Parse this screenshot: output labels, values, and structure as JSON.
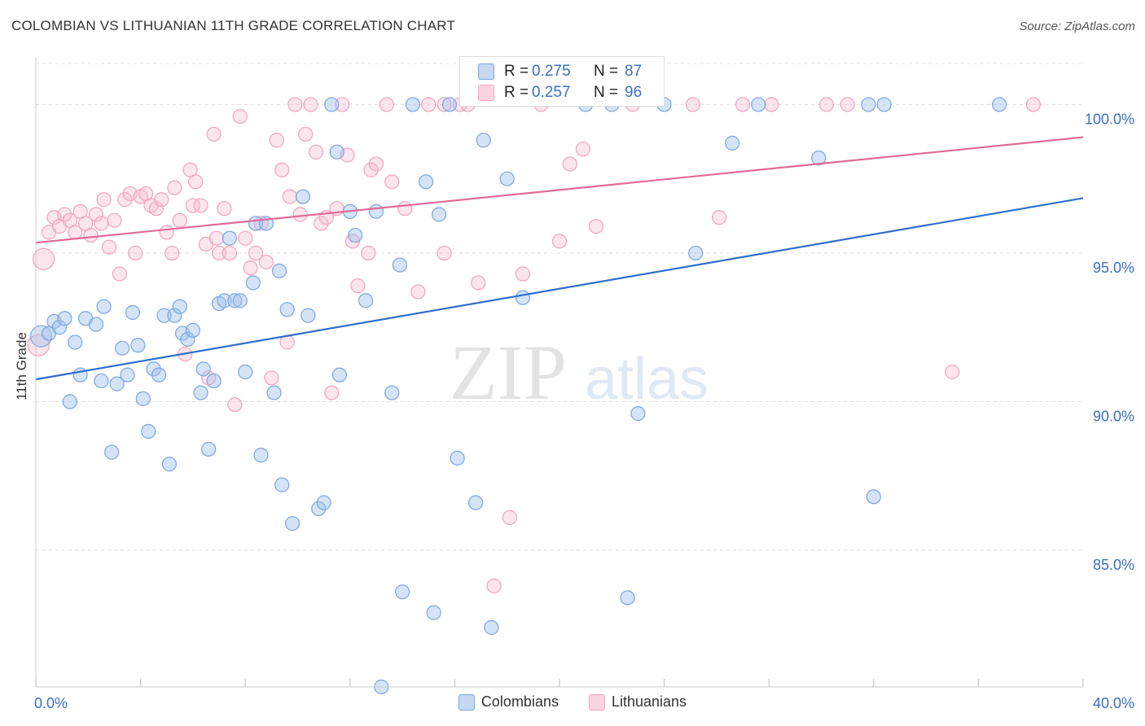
{
  "title": "COLOMBIAN VS LITHUANIAN 11TH GRADE CORRELATION CHART",
  "source": "Source: ZipAtlas.com",
  "watermark": {
    "zip": "ZIP",
    "atlas": "atlas"
  },
  "legend_top": {
    "rows": [
      {
        "r_label": "R = ",
        "r_value": "0.275",
        "n_label": "N = ",
        "n_value": "87"
      },
      {
        "r_label": "R = ",
        "r_value": "0.257",
        "n_label": "N = ",
        "n_value": "96"
      }
    ]
  },
  "legend_bottom": [
    "Colombians",
    "Lithuanians"
  ],
  "chart_data": {
    "type": "scatter",
    "title": "COLOMBIAN VS LITHUANIAN 11TH GRADE CORRELATION CHART",
    "ylabel": "11th Grade",
    "xlabel": "",
    "xlim": [
      0,
      40
    ],
    "ylim": [
      80.4,
      101.6
    ],
    "x_tick_labels": [
      "0.0%",
      "40.0%"
    ],
    "y_ticks": [
      85,
      90,
      95,
      100
    ],
    "y_tick_labels": [
      "85.0%",
      "90.0%",
      "95.0%",
      "100.0%"
    ],
    "grid": true,
    "colors": {
      "colombians": "#7aa6e0",
      "lithuanians": "#f4a6bf",
      "colombians_line": "#2f6fcc",
      "lithuanians_line": "#e06a98"
    },
    "series": [
      {
        "name": "Colombians",
        "trend": {
          "x": [
            0,
            40
          ],
          "y": [
            90.75,
            96.85
          ]
        },
        "points": [
          [
            0.2,
            92.2
          ],
          [
            0.5,
            92.3
          ],
          [
            0.7,
            92.7
          ],
          [
            0.9,
            92.5
          ],
          [
            1.1,
            92.8
          ],
          [
            1.3,
            90.0
          ],
          [
            1.5,
            92.0
          ],
          [
            1.7,
            90.9
          ],
          [
            1.9,
            92.8
          ],
          [
            2.3,
            92.6
          ],
          [
            2.5,
            90.7
          ],
          [
            2.6,
            93.2
          ],
          [
            2.9,
            88.3
          ],
          [
            3.1,
            90.6
          ],
          [
            3.3,
            91.8
          ],
          [
            3.5,
            90.9
          ],
          [
            3.7,
            93.0
          ],
          [
            3.9,
            91.9
          ],
          [
            4.1,
            90.1
          ],
          [
            4.3,
            89.0
          ],
          [
            4.5,
            91.1
          ],
          [
            4.7,
            90.9
          ],
          [
            4.9,
            92.9
          ],
          [
            5.1,
            87.9
          ],
          [
            5.3,
            92.9
          ],
          [
            5.5,
            93.2
          ],
          [
            5.6,
            92.3
          ],
          [
            5.8,
            92.1
          ],
          [
            6.0,
            92.4
          ],
          [
            6.3,
            90.3
          ],
          [
            6.4,
            91.1
          ],
          [
            6.6,
            88.4
          ],
          [
            6.8,
            90.7
          ],
          [
            7.0,
            93.3
          ],
          [
            7.2,
            93.4
          ],
          [
            7.4,
            95.5
          ],
          [
            7.6,
            93.4
          ],
          [
            7.8,
            93.4
          ],
          [
            8.0,
            91.0
          ],
          [
            8.3,
            94.0
          ],
          [
            8.4,
            96.0
          ],
          [
            8.6,
            88.2
          ],
          [
            8.8,
            96.0
          ],
          [
            9.1,
            90.3
          ],
          [
            9.3,
            94.4
          ],
          [
            9.4,
            87.2
          ],
          [
            9.6,
            93.1
          ],
          [
            9.8,
            85.9
          ],
          [
            10.2,
            96.9
          ],
          [
            10.4,
            92.9
          ],
          [
            10.8,
            86.4
          ],
          [
            11.0,
            86.6
          ],
          [
            11.3,
            100.0
          ],
          [
            11.5,
            98.4
          ],
          [
            11.6,
            90.9
          ],
          [
            12.0,
            96.4
          ],
          [
            12.2,
            95.6
          ],
          [
            12.6,
            93.4
          ],
          [
            13.0,
            96.4
          ],
          [
            13.2,
            80.4
          ],
          [
            13.6,
            90.3
          ],
          [
            13.9,
            94.6
          ],
          [
            14.0,
            83.6
          ],
          [
            14.4,
            100.0
          ],
          [
            14.9,
            97.4
          ],
          [
            15.2,
            82.9
          ],
          [
            15.4,
            96.3
          ],
          [
            15.8,
            100.0
          ],
          [
            16.1,
            88.1
          ],
          [
            16.8,
            86.6
          ],
          [
            17.1,
            98.8
          ],
          [
            17.4,
            82.4
          ],
          [
            18.0,
            97.5
          ],
          [
            18.6,
            93.5
          ],
          [
            21.0,
            100.0
          ],
          [
            22.0,
            100.0
          ],
          [
            22.6,
            83.4
          ],
          [
            23.0,
            89.6
          ],
          [
            24.0,
            100.0
          ],
          [
            25.2,
            95.0
          ],
          [
            26.6,
            98.7
          ],
          [
            27.6,
            100.0
          ],
          [
            29.9,
            98.2
          ],
          [
            31.8,
            100.0
          ],
          [
            32.0,
            86.8
          ],
          [
            32.4,
            100.0
          ],
          [
            36.8,
            100.0
          ]
        ]
      },
      {
        "name": "Lithuanians",
        "trend": {
          "x": [
            0,
            40
          ],
          "y": [
            95.35,
            98.9
          ]
        },
        "points": [
          [
            0.1,
            91.9
          ],
          [
            0.3,
            94.8
          ],
          [
            0.5,
            95.7
          ],
          [
            0.7,
            96.2
          ],
          [
            0.9,
            95.9
          ],
          [
            1.1,
            96.3
          ],
          [
            1.3,
            96.1
          ],
          [
            1.5,
            95.7
          ],
          [
            1.7,
            96.4
          ],
          [
            1.9,
            96.0
          ],
          [
            2.1,
            95.6
          ],
          [
            2.3,
            96.3
          ],
          [
            2.5,
            96.0
          ],
          [
            2.6,
            96.8
          ],
          [
            2.8,
            95.2
          ],
          [
            3.0,
            96.1
          ],
          [
            3.2,
            94.3
          ],
          [
            3.4,
            96.8
          ],
          [
            3.6,
            97.0
          ],
          [
            3.8,
            95.0
          ],
          [
            4.0,
            96.9
          ],
          [
            4.2,
            97.0
          ],
          [
            4.4,
            96.6
          ],
          [
            4.6,
            96.5
          ],
          [
            4.8,
            96.8
          ],
          [
            5.0,
            95.7
          ],
          [
            5.2,
            95.0
          ],
          [
            5.3,
            97.2
          ],
          [
            5.5,
            96.1
          ],
          [
            5.7,
            91.6
          ],
          [
            5.9,
            97.8
          ],
          [
            6.0,
            96.6
          ],
          [
            6.1,
            97.4
          ],
          [
            6.3,
            96.6
          ],
          [
            6.5,
            95.3
          ],
          [
            6.6,
            90.8
          ],
          [
            6.8,
            99.0
          ],
          [
            6.9,
            95.5
          ],
          [
            7.0,
            95.0
          ],
          [
            7.2,
            96.5
          ],
          [
            7.4,
            95.0
          ],
          [
            7.6,
            89.9
          ],
          [
            7.8,
            99.6
          ],
          [
            8.0,
            95.5
          ],
          [
            8.2,
            94.5
          ],
          [
            8.4,
            95.0
          ],
          [
            8.6,
            96.0
          ],
          [
            8.8,
            94.7
          ],
          [
            9.0,
            90.8
          ],
          [
            9.2,
            98.8
          ],
          [
            9.4,
            97.8
          ],
          [
            9.6,
            92.0
          ],
          [
            9.7,
            96.9
          ],
          [
            9.9,
            100.0
          ],
          [
            10.1,
            96.3
          ],
          [
            10.3,
            99.0
          ],
          [
            10.5,
            100.0
          ],
          [
            10.7,
            98.4
          ],
          [
            10.9,
            96.0
          ],
          [
            11.1,
            96.2
          ],
          [
            11.3,
            90.3
          ],
          [
            11.5,
            96.5
          ],
          [
            11.7,
            100.0
          ],
          [
            11.9,
            98.3
          ],
          [
            12.1,
            95.4
          ],
          [
            12.3,
            93.9
          ],
          [
            12.7,
            95.0
          ],
          [
            12.8,
            97.8
          ],
          [
            13.0,
            98.0
          ],
          [
            13.4,
            100.0
          ],
          [
            13.6,
            97.4
          ],
          [
            14.1,
            96.5
          ],
          [
            14.6,
            93.7
          ],
          [
            15.0,
            100.0
          ],
          [
            15.6,
            95.0
          ],
          [
            15.6,
            100.0
          ],
          [
            16.2,
            100.0
          ],
          [
            16.5,
            100.0
          ],
          [
            16.9,
            94.0
          ],
          [
            17.5,
            83.8
          ],
          [
            18.1,
            86.1
          ],
          [
            18.6,
            94.3
          ],
          [
            19.3,
            100.0
          ],
          [
            20.0,
            95.4
          ],
          [
            20.4,
            98.0
          ],
          [
            20.9,
            98.5
          ],
          [
            21.4,
            95.9
          ],
          [
            22.8,
            100.0
          ],
          [
            25.1,
            100.0
          ],
          [
            26.1,
            96.2
          ],
          [
            27.0,
            100.0
          ],
          [
            28.1,
            100.0
          ],
          [
            30.2,
            100.0
          ],
          [
            31.0,
            100.0
          ],
          [
            35.0,
            91.0
          ],
          [
            38.1,
            100.0
          ]
        ]
      }
    ]
  }
}
